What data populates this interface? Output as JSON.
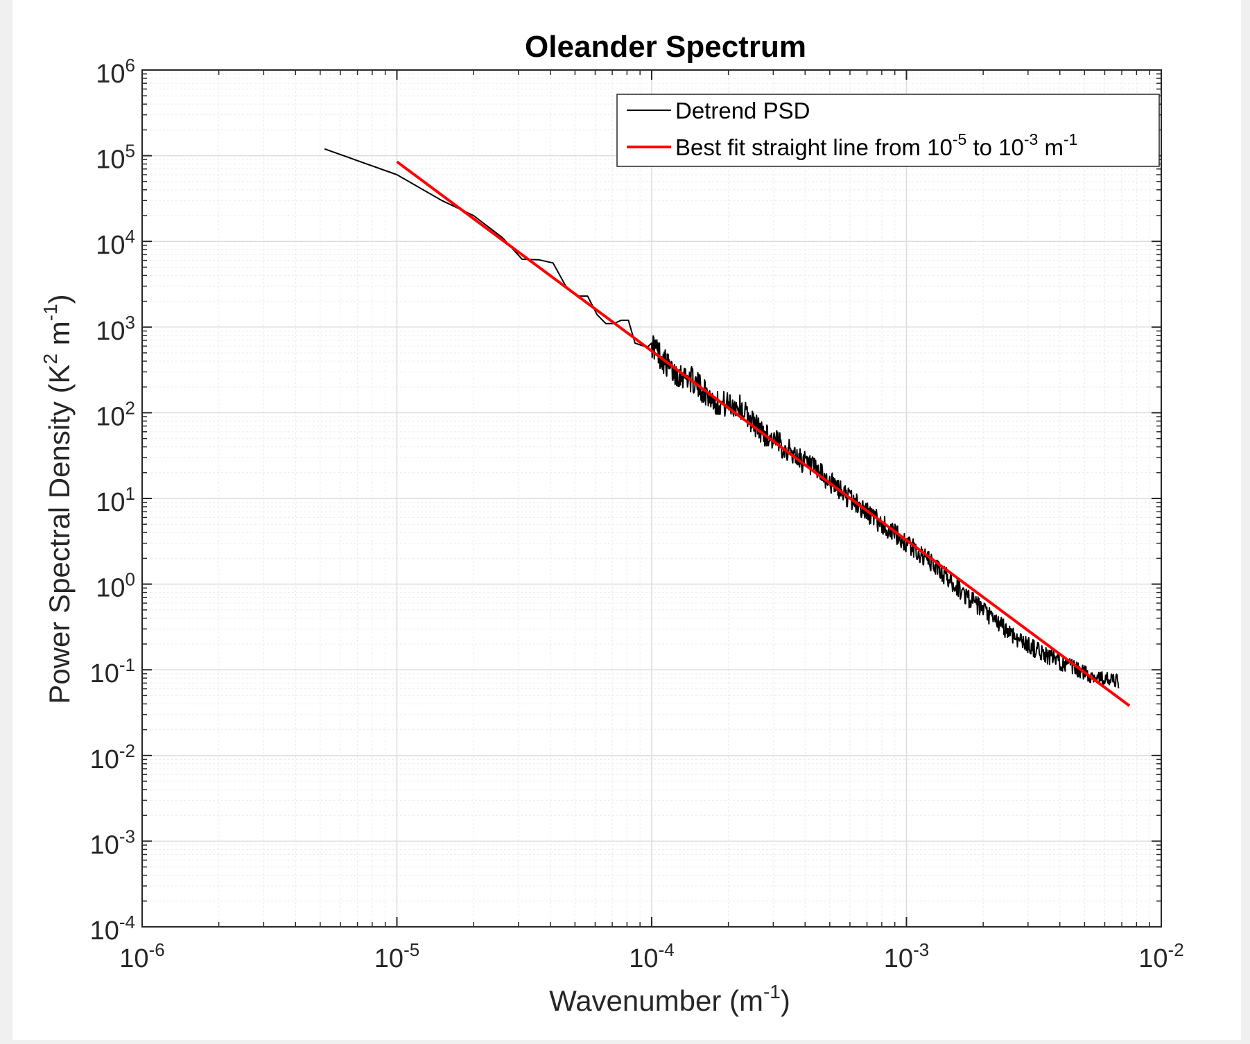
{
  "chart_data": {
    "type": "line",
    "title": "Oleander Spectrum",
    "xlabel": {
      "base": "Wavenumber (m",
      "sup": "-1",
      "tail": ")"
    },
    "ylabel": {
      "base": "Power Spectral Density (K",
      "sup1": "2",
      "mid": " m",
      "sup2": "-1",
      "tail": ")"
    },
    "xscale": "log",
    "yscale": "log",
    "xlim_exp": [
      -6,
      -2
    ],
    "ylim_exp": [
      -4,
      6
    ],
    "x_ticks": [
      {
        "base": "10",
        "exp": "-6"
      },
      {
        "base": "10",
        "exp": "-5"
      },
      {
        "base": "10",
        "exp": "-4"
      },
      {
        "base": "10",
        "exp": "-3"
      },
      {
        "base": "10",
        "exp": "-2"
      }
    ],
    "y_ticks": [
      {
        "base": "10",
        "exp": "-4"
      },
      {
        "base": "10",
        "exp": "-3"
      },
      {
        "base": "10",
        "exp": "-2"
      },
      {
        "base": "10",
        "exp": "-1"
      },
      {
        "base": "10",
        "exp": "0"
      },
      {
        "base": "10",
        "exp": "1"
      },
      {
        "base": "10",
        "exp": "2"
      },
      {
        "base": "10",
        "exp": "3"
      },
      {
        "base": "10",
        "exp": "4"
      },
      {
        "base": "10",
        "exp": "5"
      },
      {
        "base": "10",
        "exp": "6"
      }
    ],
    "grid": true,
    "minor_grid": true,
    "legend_location": "top-right",
    "series": [
      {
        "name": "Detrend PSD",
        "color": "#000000",
        "anchors": [
          [
            5.2e-06,
            120000.0
          ],
          [
            1e-05,
            60000.0
          ],
          [
            1.5e-05,
            30000.0
          ],
          [
            2e-05,
            20000.0
          ],
          [
            2.6e-05,
            11000.0
          ],
          [
            3.1e-05,
            6200.0
          ],
          [
            3.6e-05,
            6100.0
          ],
          [
            4.1e-05,
            5600.0
          ],
          [
            4.6e-05,
            3000.0
          ],
          [
            5.1e-05,
            2300.0
          ],
          [
            5.6e-05,
            2300.0
          ],
          [
            6.1e-05,
            1400.0
          ],
          [
            6.6e-05,
            1100.0
          ],
          [
            7.1e-05,
            1100.0
          ],
          [
            7.6e-05,
            1200.0
          ],
          [
            8.1e-05,
            1200.0
          ],
          [
            8.6e-05,
            650.0
          ],
          [
            9.6e-05,
            580.0
          ],
          [
            0.0001,
            650.0
          ],
          [
            0.00012,
            300.0
          ],
          [
            0.00014,
            260.0
          ],
          [
            0.00018,
            130.0
          ],
          [
            0.00022,
            120.0
          ],
          [
            0.00027,
            60.0
          ],
          [
            0.00035,
            35.0
          ],
          [
            0.00045,
            20.0
          ],
          [
            0.0006,
            10.0
          ],
          [
            0.0008,
            5.0
          ],
          [
            0.001,
            3.0
          ],
          [
            0.0013,
            1.6
          ],
          [
            0.0017,
            0.75
          ],
          [
            0.0022,
            0.38
          ],
          [
            0.0028,
            0.22
          ],
          [
            0.0035,
            0.15
          ],
          [
            0.0045,
            0.105
          ],
          [
            0.0055,
            0.082
          ],
          [
            0.0068,
            0.072
          ]
        ]
      },
      {
        "name": "Best fit straight line from 10^-5 to 10^-3 m^-1",
        "legend_label": {
          "t1": "Best fit straight line from 10",
          "s1": "-5",
          "t2": " to 10",
          "s2": "-3",
          "t3": " m",
          "s3": "-1"
        },
        "color": "#ff0000",
        "x": [
          1e-05,
          0.0075
        ],
        "y": [
          85000.0,
          0.038
        ]
      }
    ]
  }
}
